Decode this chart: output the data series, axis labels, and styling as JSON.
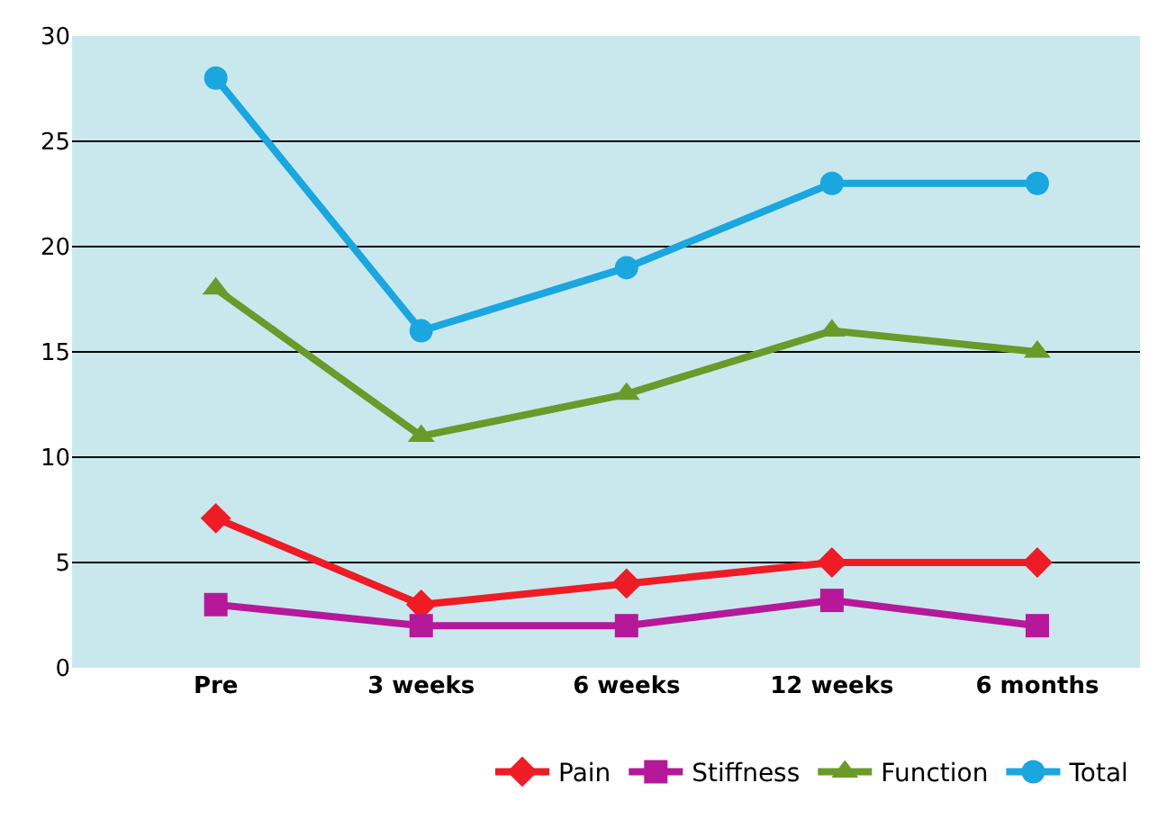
{
  "chart_data": {
    "type": "line",
    "categories": [
      "Pre",
      "3 weeks",
      "6 weeks",
      "12 weeks",
      "6 months"
    ],
    "series": [
      {
        "name": "Pain",
        "color": "#ee1c25",
        "marker": "diamond",
        "values": [
          7.1,
          3,
          4,
          5,
          5
        ]
      },
      {
        "name": "Stiffness",
        "color": "#b5199a",
        "marker": "square",
        "values": [
          3,
          2,
          2,
          3.2,
          2
        ]
      },
      {
        "name": "Function",
        "color": "#6a9a2a",
        "marker": "triangle",
        "values": [
          18,
          11,
          13,
          16,
          15
        ]
      },
      {
        "name": "Total",
        "color": "#1aa6df",
        "marker": "circle",
        "values": [
          28,
          16,
          19,
          23,
          23
        ]
      }
    ],
    "ylim": [
      0,
      30
    ],
    "yticks": [
      0,
      5,
      10,
      15,
      20,
      25,
      30
    ],
    "grid": "y",
    "legend": "bottom right",
    "line_style": "solid"
  }
}
